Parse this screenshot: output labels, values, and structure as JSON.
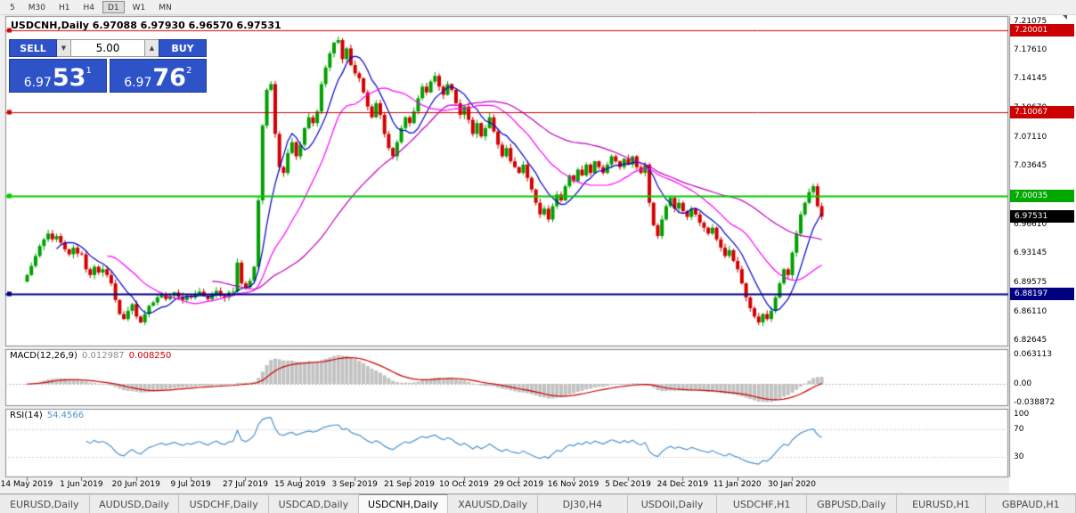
{
  "toolbar": {
    "timeframes": [
      "5",
      "M30",
      "H1",
      "H4",
      "D1",
      "W1",
      "MN"
    ],
    "active": "D1"
  },
  "icons": {
    "spinner_up": "▲",
    "spinner_down": "▼"
  },
  "chart": {
    "title": "USDCNH,Daily 6.97088 6.97930 6.96570 6.97531"
  },
  "trade_panel": {
    "sell_label": "SELL",
    "buy_label": "BUY",
    "volume": "5.00",
    "sell_price_main": "6.97",
    "sell_price_pips": "53",
    "sell_price_point": "1",
    "buy_price_main": "6.97",
    "buy_price_pips": "76",
    "buy_price_point": "2"
  },
  "price_axis": {
    "ticks": [
      "7.21075",
      "7.17610",
      "7.14145",
      "7.10670",
      "7.07110",
      "7.03645",
      "6.96610",
      "6.93145",
      "6.89575",
      "6.86110",
      "6.82645"
    ],
    "tags": [
      {
        "label": "7.20001",
        "price": 7.20001,
        "color": "#cc0000"
      },
      {
        "label": "7.10067",
        "price": 7.10067,
        "color": "#cc0000"
      },
      {
        "label": "7.00035",
        "price": 7.00035,
        "color": "#00a800"
      },
      {
        "label": "6.97531",
        "price": 6.97531,
        "color": "#000000"
      },
      {
        "label": "6.88197",
        "price": 6.88197,
        "color": "#000080"
      }
    ]
  },
  "macd_panel": {
    "name": "MACD(12,26,9)",
    "main_value": "0.012987",
    "signal_value": "0.008250",
    "ticks": [
      "0.063113",
      "0.00",
      "-0.038872"
    ]
  },
  "rsi_panel": {
    "name": "RSI(14)",
    "value": "54.4566",
    "ticks": [
      "100",
      "70",
      "30"
    ],
    "levels": [
      70,
      30
    ]
  },
  "time_axis": {
    "labels": [
      "14 May 2019",
      "1 Jun 2019",
      "20 Jun 2019",
      "9 Jul 2019",
      "27 Jul 2019",
      "15 Aug 2019",
      "3 Sep 2019",
      "21 Sep 2019",
      "10 Oct 2019",
      "29 Oct 2019",
      "16 Nov 2019",
      "5 Dec 2019",
      "24 Dec 2019",
      "11 Jan 2020",
      "30 Jan 2020"
    ]
  },
  "tabs": {
    "items": [
      "EURUSD,Daily",
      "AUDUSD,Daily",
      "USDCHF,Daily",
      "USDCAD,Daily",
      "USDCNH,Daily",
      "XAUUSD,Daily",
      "DJ30,H4",
      "USDOil,Daily",
      "USDCHF,H1",
      "GBPUSD,Daily",
      "EURUSD,H1",
      "GBPAUD,H1"
    ],
    "active_index": 4
  },
  "chart_data": {
    "type": "candlestick",
    "symbol": "USDCNH",
    "timeframe": "Daily",
    "current_ohlc": {
      "open": 6.97088,
      "high": 6.9793,
      "low": 6.9657,
      "close": 6.97531
    },
    "ylim": [
      6.819,
      7.217
    ],
    "closes": [
      6.905,
      6.916,
      6.928,
      6.94,
      6.948,
      6.955,
      6.948,
      6.952,
      6.944,
      6.936,
      6.93,
      6.938,
      6.931,
      6.93,
      6.912,
      6.905,
      6.915,
      6.908,
      6.912,
      6.905,
      6.895,
      6.875,
      6.858,
      6.852,
      6.862,
      6.87,
      6.855,
      6.848,
      6.858,
      6.868,
      6.872,
      6.878,
      6.882,
      6.876,
      6.88,
      6.884,
      6.879,
      6.875,
      6.88,
      6.878,
      6.882,
      6.885,
      6.88,
      6.876,
      6.882,
      6.886,
      6.88,
      6.878,
      6.884,
      6.885,
      6.92,
      6.895,
      6.89,
      6.898,
      6.915,
      6.995,
      7.085,
      7.128,
      7.135,
      7.075,
      7.035,
      7.028,
      7.052,
      7.065,
      7.048,
      7.062,
      7.082,
      7.095,
      7.088,
      7.102,
      7.135,
      7.155,
      7.172,
      7.185,
      7.188,
      7.165,
      7.178,
      7.158,
      7.148,
      7.142,
      7.125,
      7.108,
      7.095,
      7.112,
      7.098,
      7.075,
      7.058,
      7.048,
      7.065,
      7.082,
      7.095,
      7.088,
      7.102,
      7.118,
      7.132,
      7.125,
      7.138,
      7.145,
      7.132,
      7.122,
      7.135,
      7.128,
      7.112,
      7.098,
      7.108,
      7.092,
      7.075,
      7.088,
      7.072,
      7.082,
      7.095,
      7.078,
      7.062,
      7.048,
      7.058,
      7.042,
      7.035,
      7.028,
      7.038,
      7.022,
      7.008,
      6.992,
      6.978,
      6.985,
      6.972,
      6.988,
      7.002,
      6.995,
      7.012,
      7.025,
      7.018,
      7.032,
      7.025,
      7.038,
      7.028,
      7.042,
      7.035,
      7.028,
      7.038,
      7.048,
      7.042,
      7.035,
      7.045,
      7.038,
      7.048,
      7.035,
      7.028,
      7.038,
      6.992,
      6.965,
      6.952,
      6.972,
      6.988,
      6.998,
      6.985,
      6.992,
      6.982,
      6.975,
      6.985,
      6.978,
      6.968,
      6.962,
      6.955,
      6.962,
      6.948,
      6.938,
      6.928,
      6.935,
      6.922,
      6.912,
      6.895,
      6.878,
      6.865,
      6.855,
      6.848,
      6.858,
      6.852,
      6.862,
      6.878,
      6.895,
      6.912,
      6.905,
      6.932,
      6.955,
      6.978,
      6.992,
      7.005,
      7.012,
      6.988,
      6.97531
    ],
    "hlines": [
      {
        "price": 7.20001,
        "color": "#cc0000",
        "width": 1
      },
      {
        "price": 7.10067,
        "color": "#cc0000",
        "width": 1
      },
      {
        "price": 7.00035,
        "color": "#00cc00",
        "width": 2
      },
      {
        "price": 6.88197,
        "color": "#000080",
        "width": 2
      }
    ],
    "moving_averages": [
      {
        "period": 8,
        "color": "#0000cc"
      },
      {
        "period": 20,
        "color": "#ff00ff"
      },
      {
        "period": 45,
        "color": "#c000c0"
      }
    ],
    "macd": {
      "fast": 12,
      "slow": 26,
      "signal": 9,
      "range": [
        -0.046,
        0.072
      ],
      "hist_color": "#c2c2c2",
      "signal_color": "#cc0000"
    },
    "rsi": {
      "period": 14,
      "color": "#4f94cd",
      "range": [
        0,
        100
      ]
    },
    "up_color": "#00a000",
    "down_color": "#d40000"
  }
}
